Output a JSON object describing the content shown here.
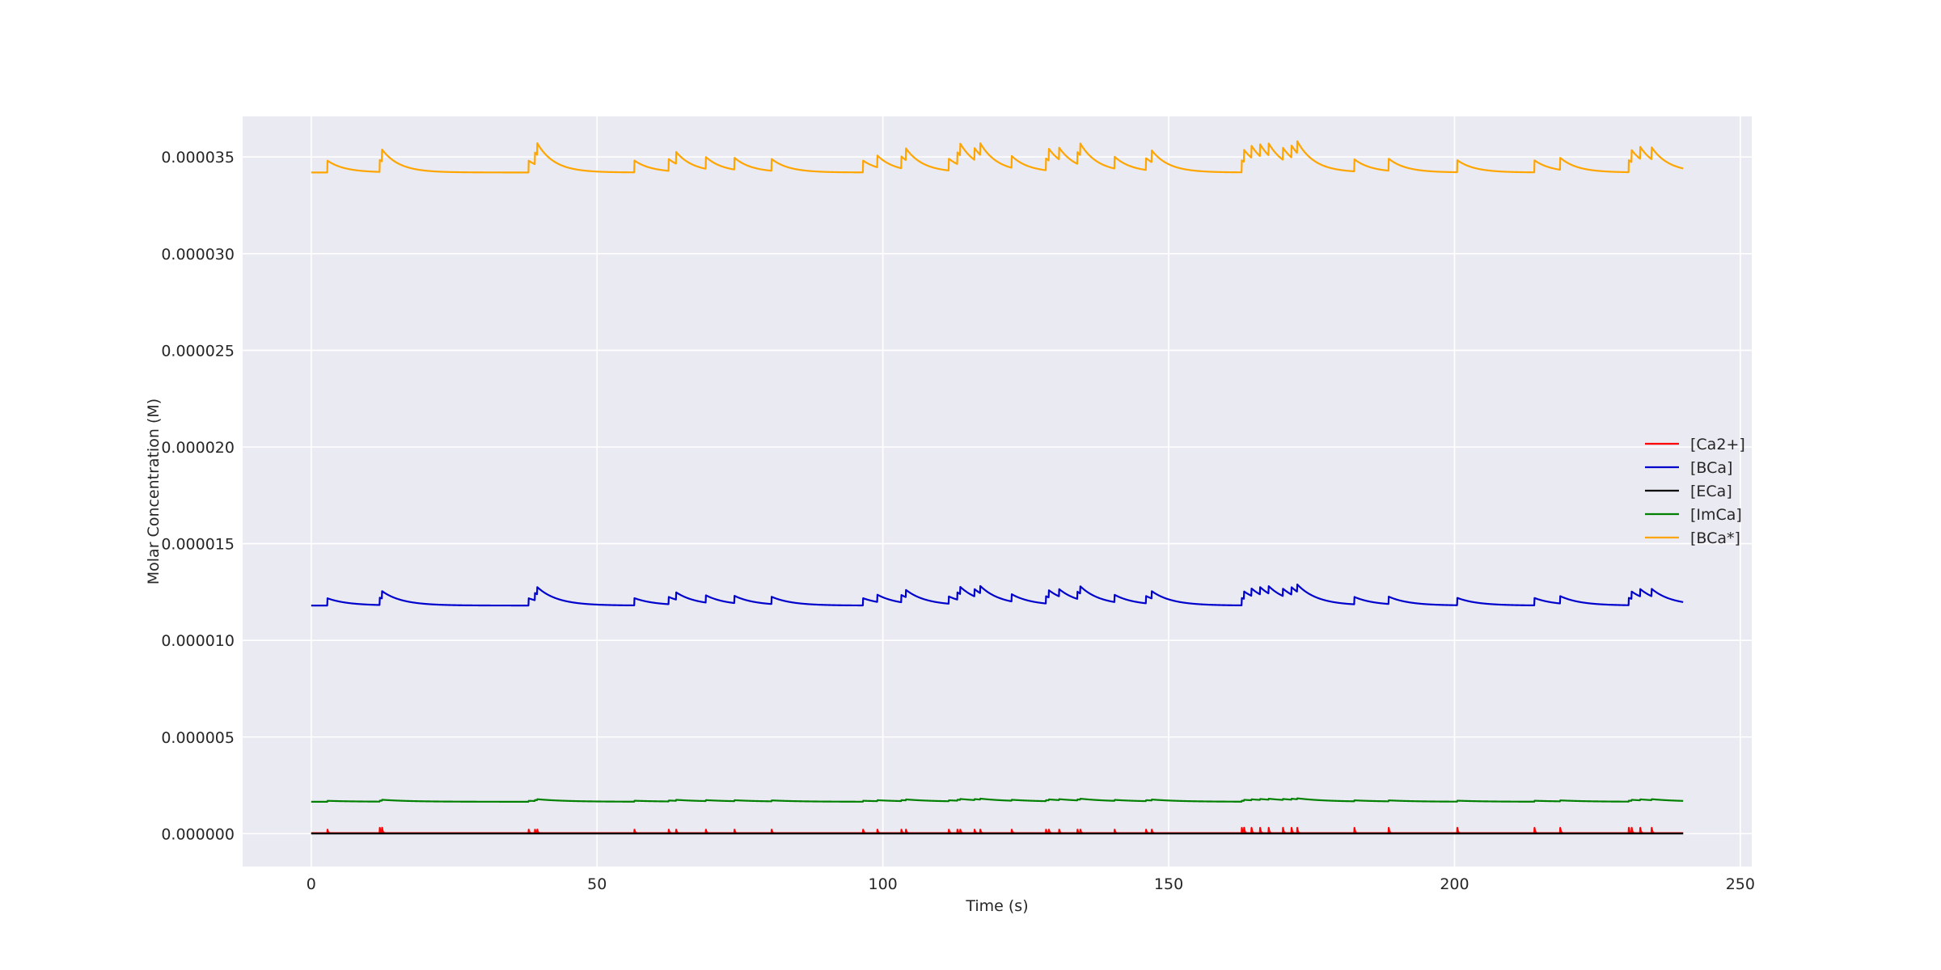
{
  "chart_data": {
    "type": "line",
    "title": "",
    "xlabel": "Time (s)",
    "ylabel": "Molar Concentration (M)",
    "xlim": [
      -12,
      252
    ],
    "ylim": [
      -1.7e-06,
      3.71e-05
    ],
    "x_ticks": [
      0,
      50,
      100,
      150,
      200,
      250
    ],
    "x_tick_labels": [
      "0",
      "50",
      "100",
      "150",
      "200",
      "250"
    ],
    "y_ticks": [
      0,
      5e-06,
      1e-05,
      1.5e-05,
      2e-05,
      2.5e-05,
      3e-05,
      3.5e-05
    ],
    "y_tick_labels": [
      "0.000000",
      "0.000005",
      "0.000010",
      "0.000015",
      "0.000020",
      "0.000025",
      "0.000030",
      "0.000035"
    ],
    "grid": true,
    "legend_position": "center-right",
    "x_end": 240,
    "events": [
      2.8,
      12.0,
      12.4,
      38.0,
      39.1,
      39.5,
      56.5,
      62.5,
      63.8,
      69.0,
      74.0,
      80.5,
      96.5,
      99.0,
      103.2,
      104.0,
      111.5,
      113.0,
      113.5,
      116.0,
      117.0,
      122.5,
      128.5,
      129.0,
      130.8,
      134.0,
      134.5,
      140.5,
      146.0,
      147.0,
      162.8,
      163.2,
      164.5,
      166.0,
      167.5,
      170.0,
      171.5,
      172.5,
      182.5,
      188.5,
      200.5,
      214.0,
      218.5,
      230.5,
      231.0,
      232.5,
      234.5
    ],
    "series": [
      {
        "name": "[Ca2+]",
        "color": "#ff0000",
        "baseline": 3e-08,
        "spike": 2.7e-07,
        "tau": 0.12
      },
      {
        "name": "[BCa]",
        "color": "#0000cc",
        "baseline": 1.18e-05,
        "spike": 3.8e-07,
        "tau": 3.5
      },
      {
        "name": "[ECa]",
        "color": "#000000",
        "baseline": 1e-08,
        "spike": 0.0,
        "tau": 1.0
      },
      {
        "name": "[ImCa]",
        "color": "#008000",
        "baseline": 1.65e-06,
        "spike": 5e-08,
        "tau": 5.0
      },
      {
        "name": "[BCa*]",
        "color": "#ffa500",
        "baseline": 3.42e-05,
        "spike": 6.2e-07,
        "tau": 3.0
      }
    ]
  }
}
